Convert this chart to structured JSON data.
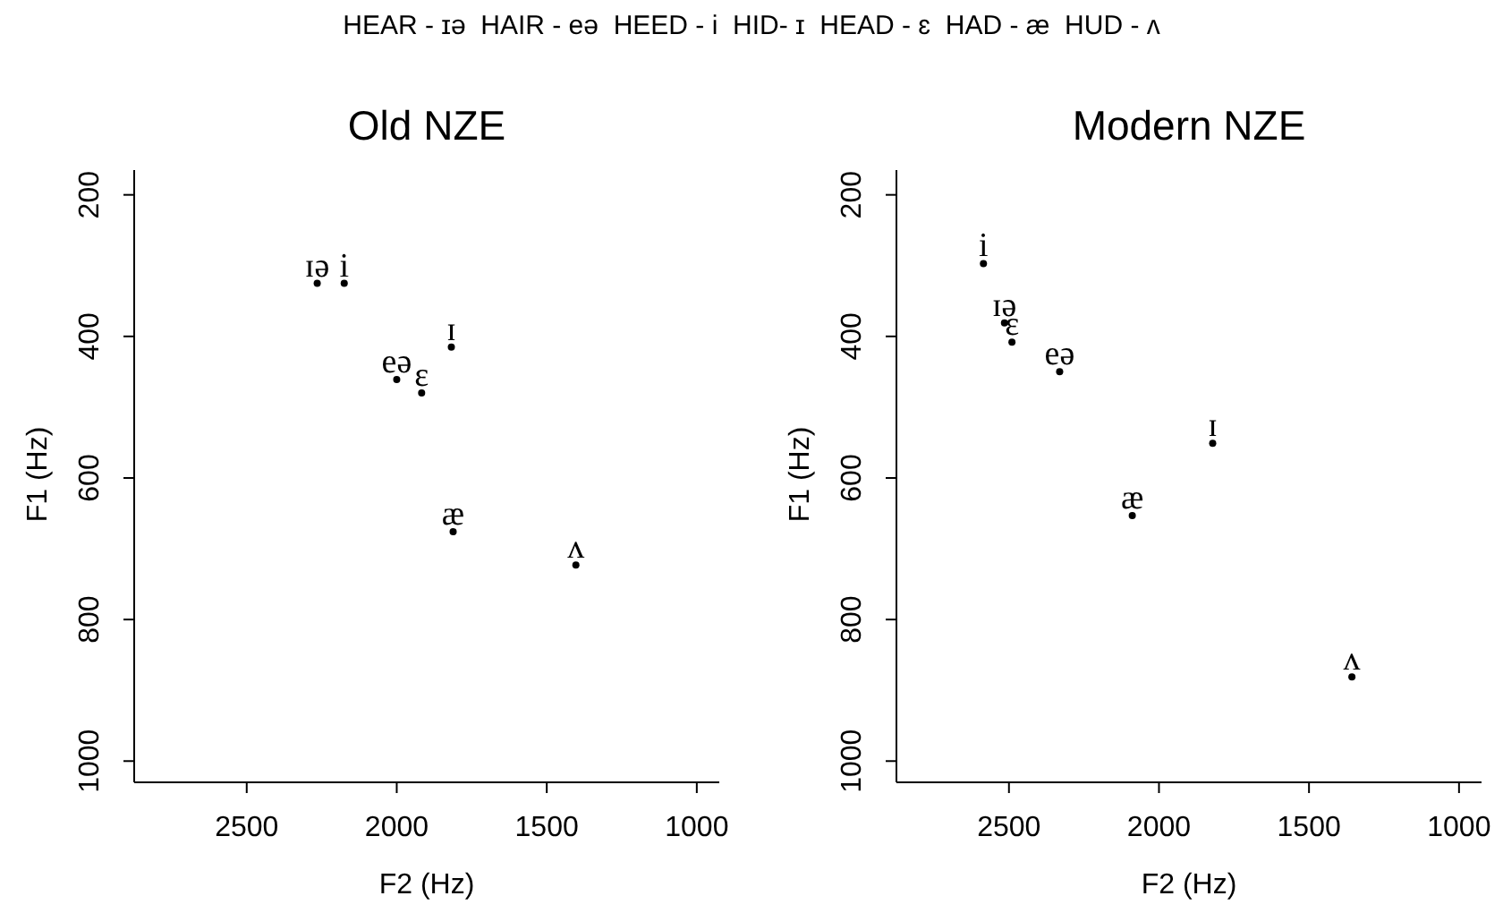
{
  "chart_data": [
    {
      "type": "scatter",
      "title": "Old NZE",
      "xlabel": "F2 (Hz)",
      "ylabel": "F1 (Hz)",
      "annotations": [
        "HEAR - ɪə  HAIR - eə  HEED - i  HID- ɪ  HEAD - ɛ  HAD - æ  HUD - ʌ"
      ],
      "x": [
        2265,
        2000,
        2175,
        1818,
        1917,
        1812,
        1403
      ],
      "series": [
        {
          "color": "#000000",
          "values": [
            325,
            461,
            325,
            415,
            480,
            676,
            723
          ],
          "value_labels": [
            "ɪə",
            "eə",
            "i",
            "ɪ",
            "ɛ",
            "æ",
            "ʌ"
          ]
        }
      ],
      "xlim": [
        2875,
        925
      ],
      "xticks": [
        2500,
        2000,
        1500,
        1000
      ],
      "ylim": [
        1030,
        165
      ],
      "yticks": [
        200,
        400,
        600,
        800,
        1000
      ],
      "grid": false,
      "legend": false
    },
    {
      "type": "scatter",
      "title": "Modern NZE",
      "xlabel": "F2 (Hz)",
      "ylabel": "F1 (Hz)",
      "x": [
        2515,
        2331,
        2585,
        1821,
        2490,
        2089,
        1357
      ],
      "series": [
        {
          "color": "#000000",
          "values": [
            381,
            450,
            297,
            551,
            408,
            653,
            881
          ],
          "value_labels": [
            "ɪə",
            "eə",
            "i",
            "ɪ",
            "ɛ",
            "æ",
            "ʌ"
          ]
        }
      ],
      "xlim": [
        2875,
        925
      ],
      "xticks": [
        2500,
        2000,
        1500,
        1000
      ],
      "ylim": [
        1030,
        165
      ],
      "yticks": [
        200,
        400,
        600,
        800,
        1000
      ],
      "grid": false,
      "legend": false
    }
  ]
}
